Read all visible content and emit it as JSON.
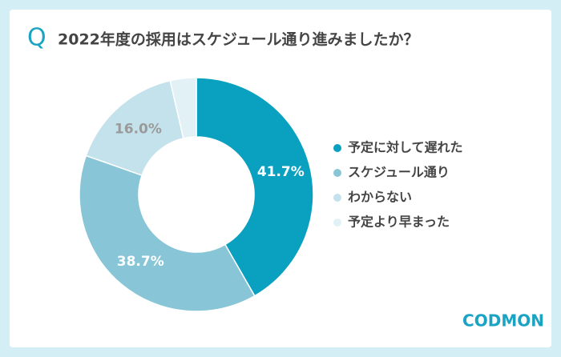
{
  "chart_data": {
    "type": "donut",
    "title_marker": "Q",
    "title": "2022年度の採用はスケジュール通り進みましたか？",
    "categories": [
      "予定に対して遅れた",
      "スケジュール通り",
      "わからない",
      "予定より早まった"
    ],
    "values": [
      41.7,
      38.7,
      16.0,
      3.6
    ],
    "value_labels": [
      "41.7%",
      "38.7%",
      "16.0%",
      null
    ],
    "colors": [
      "#0aa0c0",
      "#88c5d6",
      "#c3e2eb",
      "#e2f1f5"
    ],
    "label_colors": [
      "#ffffff",
      "#ffffff",
      "#9a9a9a",
      null
    ],
    "legend": "right"
  },
  "logo": "CODMON"
}
